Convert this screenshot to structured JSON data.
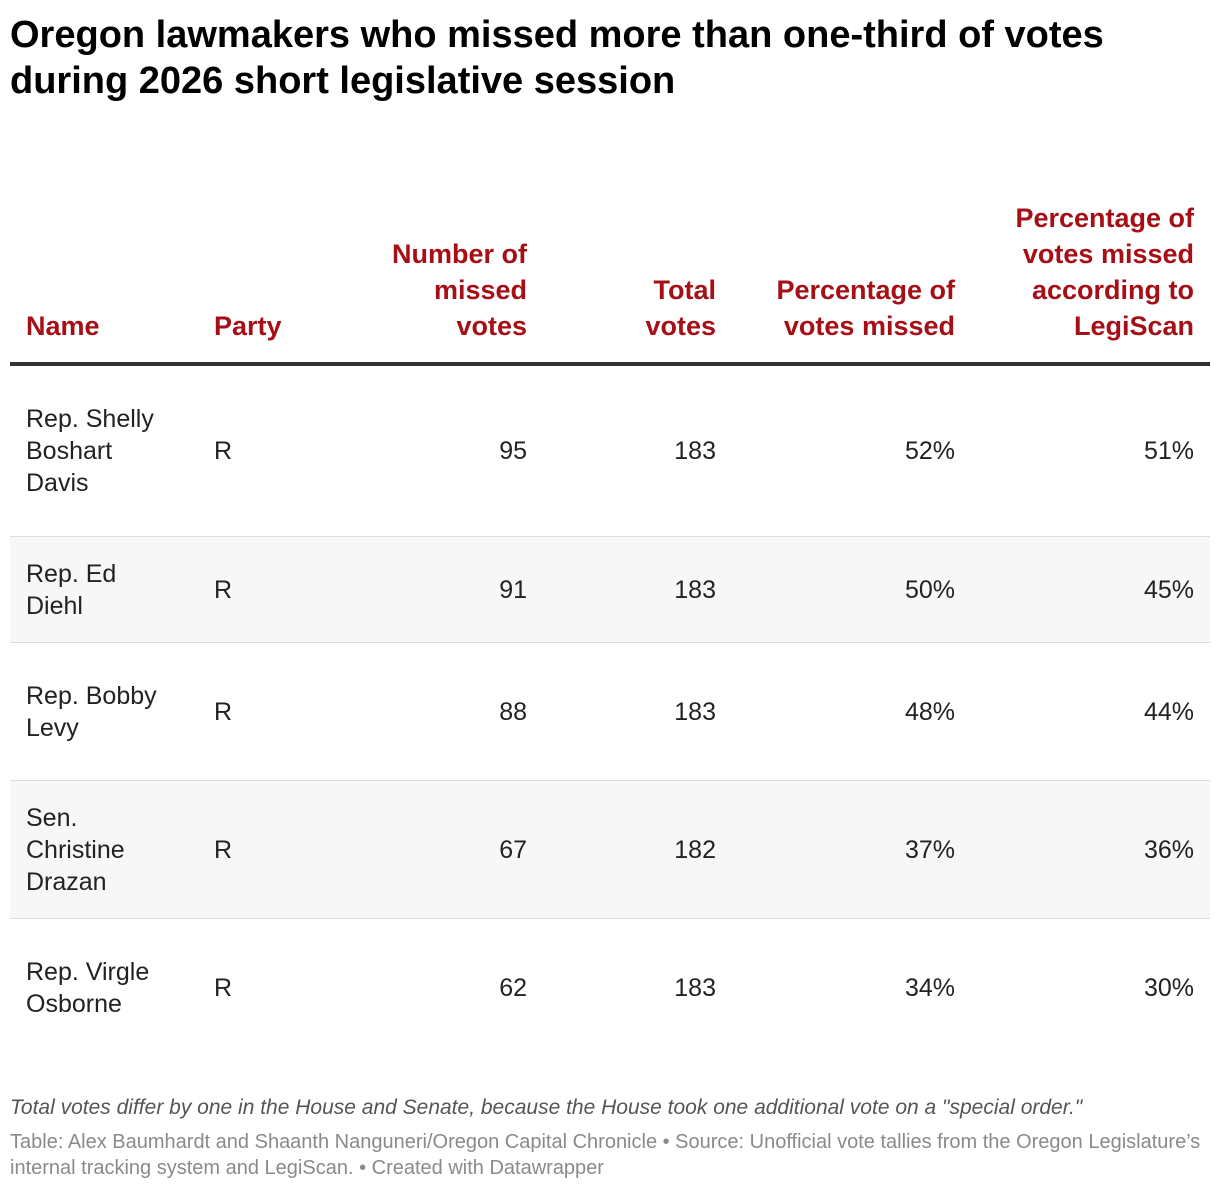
{
  "title": "Oregon lawmakers who missed more than one-third of votes during 2026 short legislative session",
  "chart_data": {
    "type": "table",
    "title": "Oregon lawmakers who missed more than one-third of votes during 2026 short legislative session",
    "columns": [
      "Name",
      "Party",
      "Number of missed votes",
      "Total votes",
      "Percentage of votes missed",
      "Percentage of votes missed according to LegiScan"
    ],
    "rows": [
      {
        "name": "Rep. Shelly Boshart Davis",
        "party": "R",
        "missed": 95,
        "total": 183,
        "pct": "52%",
        "legiscan": "51%"
      },
      {
        "name": "Rep. Ed Diehl",
        "party": "R",
        "missed": 91,
        "total": 183,
        "pct": "50%",
        "legiscan": "45%"
      },
      {
        "name": "Rep. Bobby Levy",
        "party": "R",
        "missed": 88,
        "total": 183,
        "pct": "48%",
        "legiscan": "44%"
      },
      {
        "name": "Sen. Christine Drazan",
        "party": "R",
        "missed": 67,
        "total": 182,
        "pct": "37%",
        "legiscan": "36%"
      },
      {
        "name": "Rep. Virgle Osborne",
        "party": "R",
        "missed": 62,
        "total": 183,
        "pct": "34%",
        "legiscan": "30%"
      }
    ]
  },
  "colors": {
    "header": "#a50f15",
    "alt_row": "#f7f7f7"
  },
  "notes": "Total votes differ by one in the House and Senate, because the House took one additional vote on a \"special order.\"",
  "source": "Table: Alex Baumhardt and Shaanth Nanguneri/Oregon Capital Chronicle • Source: Unofficial vote tallies from the Oregon Legislature’s internal tracking system and LegiScan. • Created with Datawrapper"
}
